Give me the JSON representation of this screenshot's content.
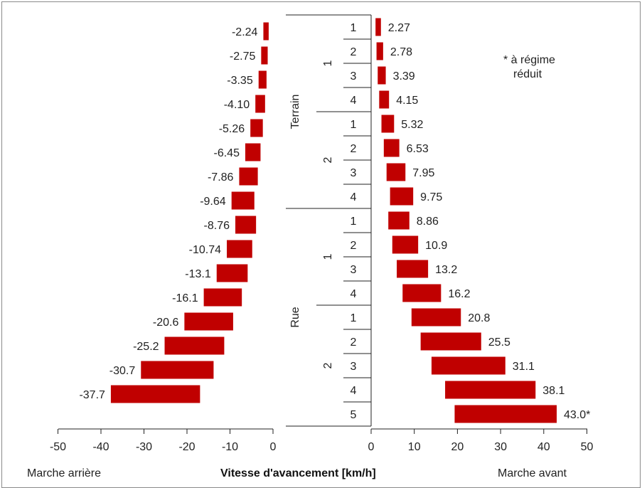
{
  "chart_data": {
    "type": "bar",
    "xlabel": "Vitesse d'avancement [km/h]",
    "left_label": "Marche arrière",
    "right_label": "Marche avant",
    "note": "* à régime réduit",
    "reverse_ticks": [
      "-50",
      "-40",
      "-30",
      "-20",
      "-10",
      "0"
    ],
    "forward_ticks": [
      "0",
      "10",
      "20",
      "30",
      "40",
      "50"
    ],
    "reverse_range": [
      -50,
      0
    ],
    "forward_range": [
      0,
      50
    ],
    "groups": [
      {
        "name": "Terrain",
        "subgroups": [
          {
            "name": "1",
            "gears": [
              "1",
              "2",
              "3",
              "4"
            ]
          },
          {
            "name": "2",
            "gears": [
              "1",
              "2",
              "3",
              "4"
            ]
          }
        ]
      },
      {
        "name": "Rue",
        "subgroups": [
          {
            "name": "1",
            "gears": [
              "1",
              "2",
              "3",
              "4"
            ]
          },
          {
            "name": "2",
            "gears": [
              "1",
              "2",
              "3",
              "4",
              "5"
            ]
          }
        ]
      }
    ],
    "forward": [
      {
        "value": 2.27,
        "label": "2.27"
      },
      {
        "value": 2.78,
        "label": "2.78"
      },
      {
        "value": 3.39,
        "label": "3.39"
      },
      {
        "value": 4.15,
        "label": "4.15"
      },
      {
        "value": 5.32,
        "label": "5.32"
      },
      {
        "value": 6.53,
        "label": "6.53"
      },
      {
        "value": 7.95,
        "label": "7.95"
      },
      {
        "value": 9.75,
        "label": "9.75"
      },
      {
        "value": 8.86,
        "label": "8.86"
      },
      {
        "value": 10.9,
        "label": "10.9"
      },
      {
        "value": 13.2,
        "label": "13.2"
      },
      {
        "value": 16.2,
        "label": "16.2"
      },
      {
        "value": 20.8,
        "label": "20.8"
      },
      {
        "value": 25.5,
        "label": "25.5"
      },
      {
        "value": 31.1,
        "label": "31.1"
      },
      {
        "value": 38.1,
        "label": "38.1"
      },
      {
        "value": 43.0,
        "label": "43.0*"
      }
    ],
    "reverse": [
      {
        "value": -2.24,
        "label": "-2.24"
      },
      {
        "value": -2.75,
        "label": "-2.75"
      },
      {
        "value": -3.35,
        "label": "-3.35"
      },
      {
        "value": -4.1,
        "label": "-4.10"
      },
      {
        "value": -5.26,
        "label": "-5.26"
      },
      {
        "value": -6.45,
        "label": "-6.45"
      },
      {
        "value": -7.86,
        "label": "-7.86"
      },
      {
        "value": -9.64,
        "label": "-9.64"
      },
      {
        "value": -8.76,
        "label": "-8.76"
      },
      {
        "value": -10.74,
        "label": "-10.74"
      },
      {
        "value": -13.1,
        "label": "-13.1"
      },
      {
        "value": -16.1,
        "label": "-16.1"
      },
      {
        "value": -20.6,
        "label": "-20.6"
      },
      {
        "value": -25.2,
        "label": "-25.2"
      },
      {
        "value": -30.7,
        "label": "-30.7"
      },
      {
        "value": -37.7,
        "label": "-37.7"
      }
    ],
    "bar_color": "#c00000",
    "grid": false
  }
}
